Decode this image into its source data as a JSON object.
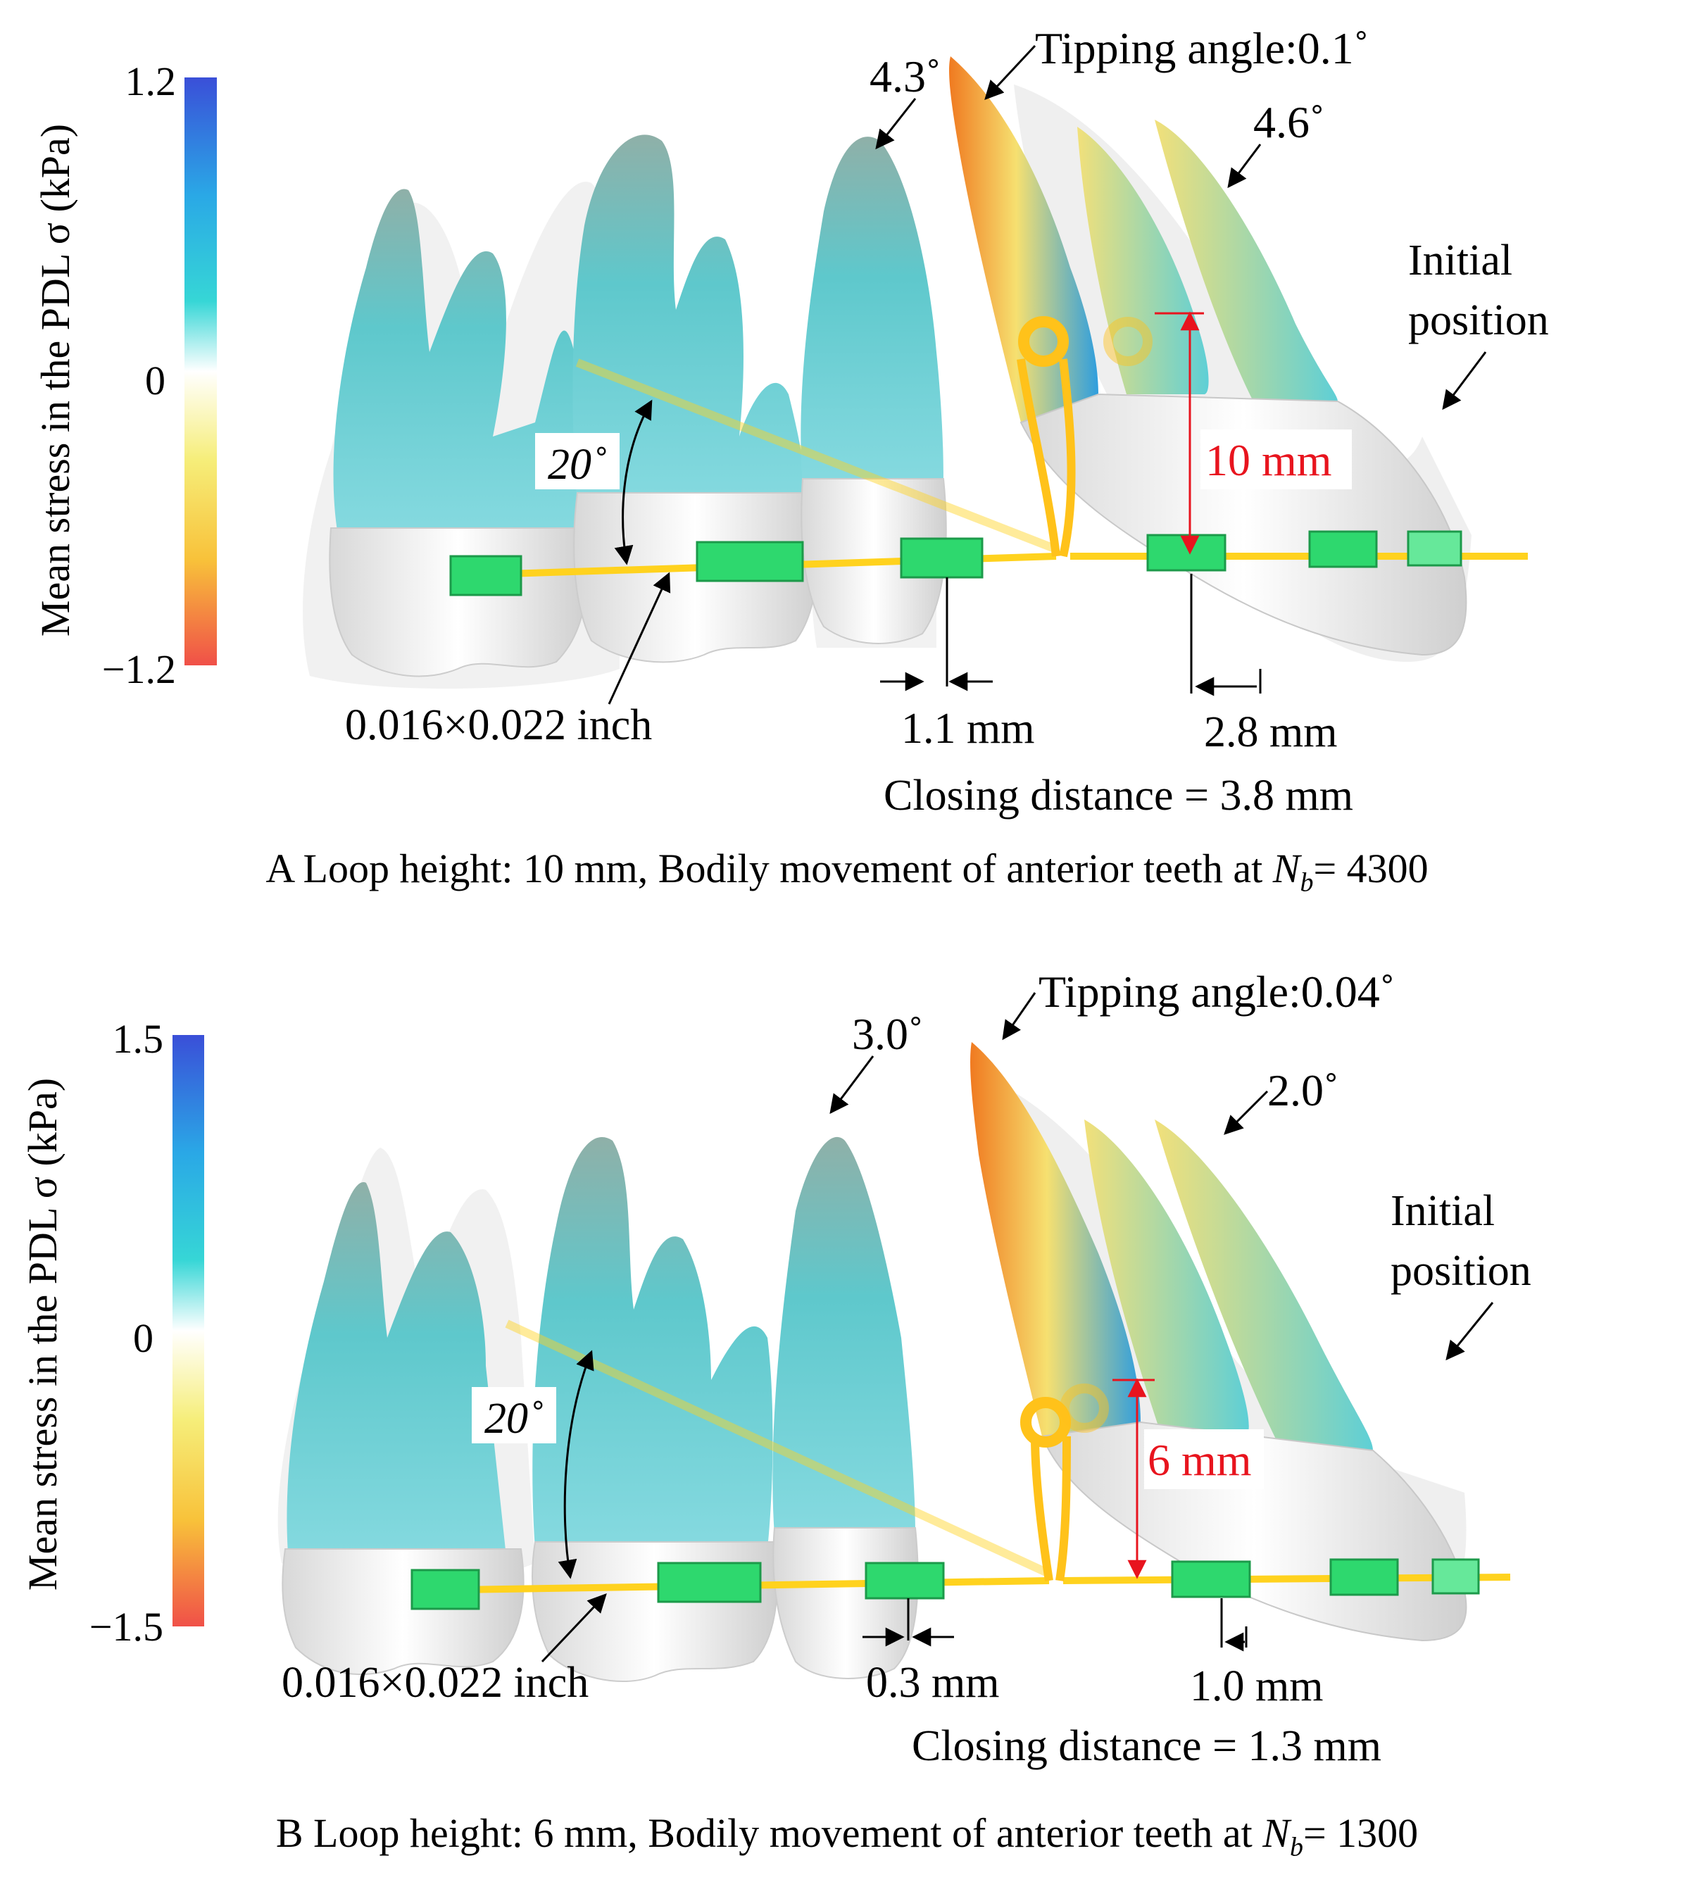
{
  "panels": [
    {
      "colorbar": {
        "max": "1.2",
        "mid": "0",
        "min": "−1.2",
        "label": "Mean stress in the PDL σ (kPa)"
      },
      "labels": {
        "tipping_angle": "Tipping angle:0.1˚",
        "canine_angle": "4.3˚",
        "lateral_angle": "4.6˚",
        "initial_line1": "Initial",
        "initial_line2": "position",
        "wire_angle": "20˚",
        "loop_height": "10 mm",
        "wire_size": "0.016×0.022 inch",
        "posterior_move": "1.1 mm",
        "anterior_move": "2.8 mm",
        "closing": "Closing distance = 3.8 mm"
      },
      "caption": {
        "letter": "A",
        "text": "Loop height: 10 mm,  Bodily movement of anterior teeth at ",
        "n_main": "N",
        "n_sub": "b",
        "n_value": "= 4300"
      }
    },
    {
      "colorbar": {
        "max": "1.5",
        "mid": "0",
        "min": "−1.5",
        "label": "Mean stress in the PDL σ (kPa)"
      },
      "labels": {
        "tipping_angle": "Tipping angle:0.04˚",
        "canine_angle": "3.0˚",
        "lateral_angle": "2.0˚",
        "initial_line1": "Initial",
        "initial_line2": "position",
        "wire_angle": "20˚",
        "loop_height": "6 mm",
        "wire_size": "0.016×0.022 inch",
        "posterior_move": "0.3 mm",
        "anterior_move": "1.0 mm",
        "closing": "Closing distance = 1.3 mm"
      },
      "caption": {
        "letter": "B",
        "text": "Loop height: 6 mm,  Bodily movement of anterior teeth at ",
        "n_main": "N",
        "n_sub": "b",
        "n_value": "= 1300"
      }
    }
  ],
  "colors": {
    "annotation": "#000000",
    "loop_dimension": "#e8141e",
    "wire": "#ffd21e",
    "bracket": "#2ed86e",
    "scale_top": "#3a4fd8",
    "scale_mid": "#ffffff",
    "scale_bottom": "#f05048"
  }
}
